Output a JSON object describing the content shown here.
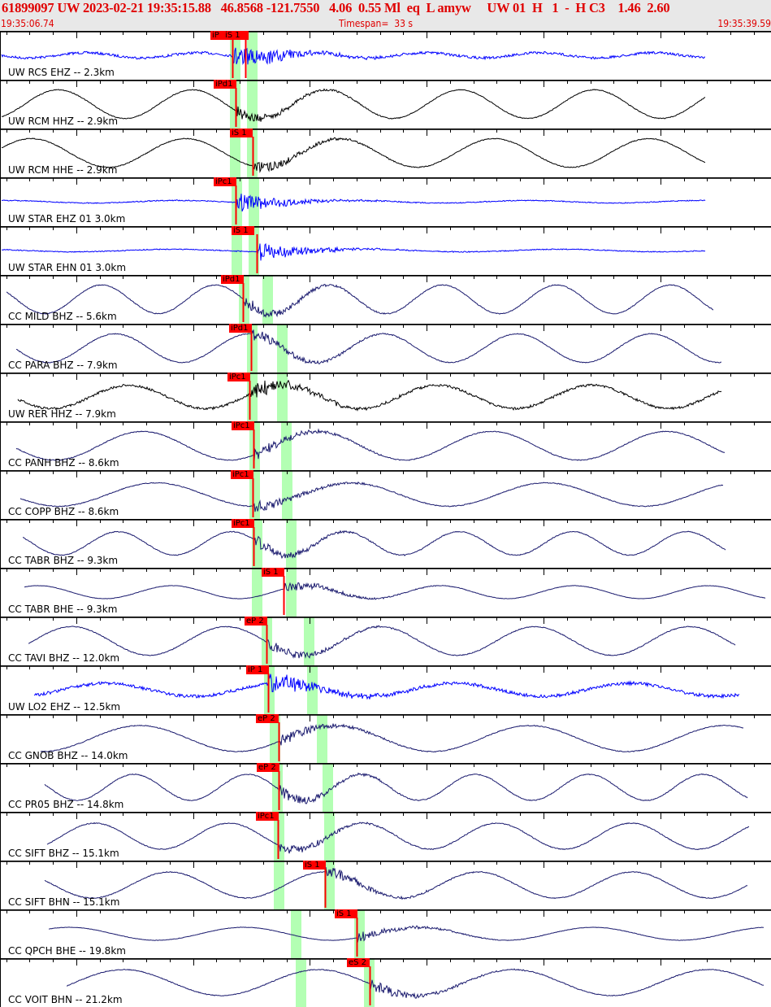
{
  "header": {
    "event_line": "61899097 UW 2023-02-21 19:35:15.88   46.8568 -121.7550   4.06  0.55 Ml  eq  L amyw     UW 01  H   1  -  H C3    1.46  2.60",
    "start_time": "19:35:06.74",
    "timespan": "Timespan=  33 s",
    "end_time": "19:35:39.59"
  },
  "colors": {
    "header_bg": "#e8e8e8",
    "header_text": "#e00000",
    "pick": "#ff0000",
    "window": "#b3ffb3",
    "trace_blue": "#0000ff",
    "trace_black": "#000000",
    "trace_navy": "#1a1a6e"
  },
  "traces": [
    {
      "label": "UW RCS EHZ -- 2.3km",
      "color": "#0000ff",
      "picks": [
        "iP",
        "iS 1"
      ]
    },
    {
      "label": "UW RCM HHZ -- 2.9km",
      "color": "#000000",
      "picks": [
        "iPd1"
      ]
    },
    {
      "label": "UW RCM HHE -- 2.9km",
      "color": "#000000",
      "picks": [
        "iS 1"
      ]
    },
    {
      "label": "UW STAR EHZ 01 3.0km",
      "color": "#0000ff",
      "picks": [
        "iPc1"
      ]
    },
    {
      "label": "UW STAR EHN 01 3.0km",
      "color": "#0000ff",
      "picks": [
        "iS 1"
      ]
    },
    {
      "label": "CC MILD BHZ -- 5.6km",
      "color": "#1a1a6e",
      "picks": [
        "iPd1"
      ]
    },
    {
      "label": "CC PARA BHZ -- 7.9km",
      "color": "#1a1a6e",
      "picks": [
        "iPd1"
      ]
    },
    {
      "label": "UW RER HHZ -- 7.9km",
      "color": "#000000",
      "picks": [
        "iPc1"
      ]
    },
    {
      "label": "CC PANH BHZ -- 8.6km",
      "color": "#1a1a6e",
      "picks": [
        "iPc1"
      ]
    },
    {
      "label": "CC COPP BHZ -- 8.6km",
      "color": "#1a1a6e",
      "picks": [
        "iPc1"
      ]
    },
    {
      "label": "CC TABR BHZ -- 9.3km",
      "color": "#1a1a6e",
      "picks": [
        "iPc1"
      ]
    },
    {
      "label": "CC TABR BHE -- 9.3km",
      "color": "#1a1a6e",
      "picks": [
        "iS 1"
      ]
    },
    {
      "label": "CC TAVI BHZ -- 12.0km",
      "color": "#1a1a6e",
      "picks": [
        "eP 2"
      ]
    },
    {
      "label": "UW LO2 EHZ -- 12.5km",
      "color": "#0000ff",
      "picks": [
        "iP 1"
      ]
    },
    {
      "label": "CC GNOB BHZ -- 14.0km",
      "color": "#1a1a6e",
      "picks": [
        "eP 2"
      ]
    },
    {
      "label": "CC PR05 BHZ -- 14.8km",
      "color": "#1a1a6e",
      "picks": [
        "eP 2"
      ]
    },
    {
      "label": "CC SIFT BHZ -- 15.1km",
      "color": "#1a1a6e",
      "picks": [
        "iPc1"
      ]
    },
    {
      "label": "CC SIFT BHN -- 15.1km",
      "color": "#1a1a6e",
      "picks": [
        "iS 1"
      ]
    },
    {
      "label": "CC QPCH BHE -- 19.8km",
      "color": "#1a1a6e",
      "picks": [
        "iS 1"
      ]
    },
    {
      "label": "CC VOIT BHN -- 21.2km",
      "color": "#1a1a6e",
      "picks": [
        "eS 2"
      ]
    }
  ]
}
